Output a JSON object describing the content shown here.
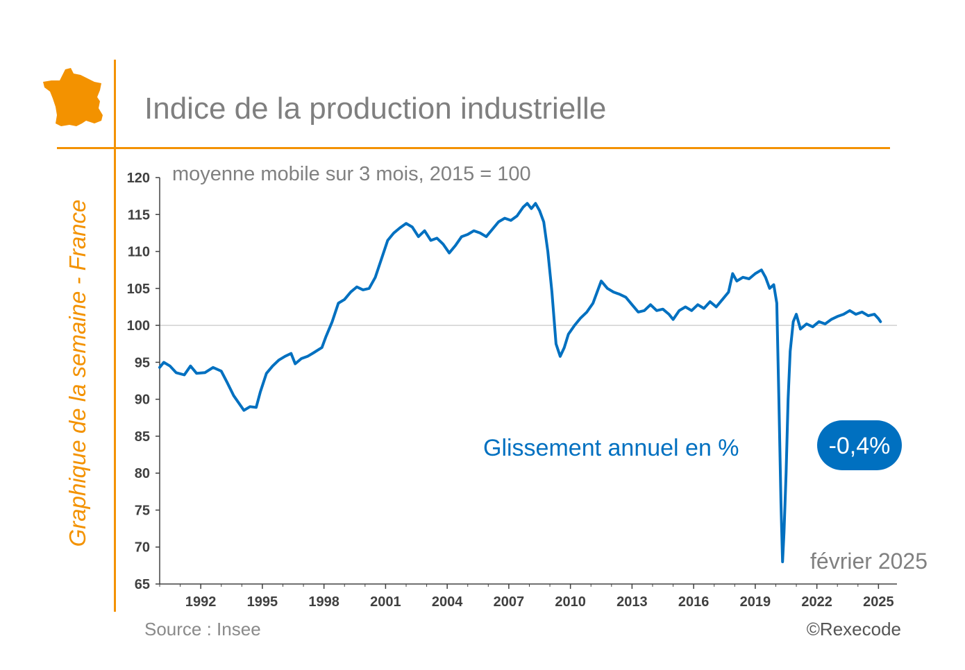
{
  "header": {
    "title": "Indice de la production industrielle",
    "side_label": "Graphique de la semaine - France"
  },
  "footer": {
    "source": "Source : Insee",
    "copyright": "©Rexecode"
  },
  "colors": {
    "accent": "#F39200",
    "line": "#0070C0",
    "badge": "#0070C0",
    "text_grey": "#808080",
    "reference_line": "#d0d0d0"
  },
  "icons": [
    "france-map-icon"
  ],
  "chart_data": {
    "type": "line",
    "subtitle": "moyenne mobile sur 3 mois, 2015 = 100",
    "xlabel": "",
    "ylabel": "",
    "ylim": [
      65,
      120
    ],
    "y_ticks": [
      "120",
      "115",
      "110",
      "105",
      "100",
      "95",
      "90",
      "85",
      "80",
      "75",
      "70",
      "65"
    ],
    "x_range": [
      1990.0,
      2025.9
    ],
    "x_ticks": [
      "1992",
      "1995",
      "1998",
      "2001",
      "2004",
      "2007",
      "2010",
      "2013",
      "2016",
      "2019",
      "2022",
      "2025"
    ],
    "reference_line": 100,
    "grid": false,
    "annotation": "Glissement annuel en %",
    "badge": "-0,4%",
    "date_label": "février 2025",
    "series": [
      {
        "values": [
          [
            1990.0,
            94.3
          ],
          [
            1990.2,
            95.0
          ],
          [
            1990.5,
            94.5
          ],
          [
            1990.8,
            93.6
          ],
          [
            1991.2,
            93.3
          ],
          [
            1991.5,
            94.5
          ],
          [
            1991.8,
            93.5
          ],
          [
            1992.2,
            93.6
          ],
          [
            1992.6,
            94.3
          ],
          [
            1993.0,
            93.8
          ],
          [
            1993.3,
            92.2
          ],
          [
            1993.6,
            90.5
          ],
          [
            1993.9,
            89.3
          ],
          [
            1994.1,
            88.5
          ],
          [
            1994.4,
            89.0
          ],
          [
            1994.7,
            88.9
          ],
          [
            1994.9,
            91.0
          ],
          [
            1995.2,
            93.5
          ],
          [
            1995.5,
            94.5
          ],
          [
            1995.8,
            95.3
          ],
          [
            1996.1,
            95.8
          ],
          [
            1996.4,
            96.2
          ],
          [
            1996.6,
            94.8
          ],
          [
            1996.9,
            95.5
          ],
          [
            1997.2,
            95.8
          ],
          [
            1997.5,
            96.3
          ],
          [
            1997.9,
            97.0
          ],
          [
            1998.1,
            98.5
          ],
          [
            1998.4,
            100.5
          ],
          [
            1998.7,
            103.0
          ],
          [
            1999.0,
            103.5
          ],
          [
            1999.3,
            104.5
          ],
          [
            1999.6,
            105.2
          ],
          [
            1999.9,
            104.8
          ],
          [
            2000.2,
            105.0
          ],
          [
            2000.5,
            106.5
          ],
          [
            2000.8,
            109.0
          ],
          [
            2001.1,
            111.5
          ],
          [
            2001.4,
            112.5
          ],
          [
            2001.7,
            113.2
          ],
          [
            2002.0,
            113.8
          ],
          [
            2002.3,
            113.3
          ],
          [
            2002.6,
            112.0
          ],
          [
            2002.9,
            112.8
          ],
          [
            2003.2,
            111.5
          ],
          [
            2003.5,
            111.8
          ],
          [
            2003.8,
            111.0
          ],
          [
            2004.1,
            109.8
          ],
          [
            2004.4,
            110.8
          ],
          [
            2004.7,
            112.0
          ],
          [
            2005.0,
            112.3
          ],
          [
            2005.3,
            112.8
          ],
          [
            2005.6,
            112.5
          ],
          [
            2005.9,
            112.0
          ],
          [
            2006.2,
            113.0
          ],
          [
            2006.5,
            114.0
          ],
          [
            2006.8,
            114.5
          ],
          [
            2007.1,
            114.2
          ],
          [
            2007.4,
            114.8
          ],
          [
            2007.7,
            116.0
          ],
          [
            2007.9,
            116.5
          ],
          [
            2008.1,
            115.8
          ],
          [
            2008.3,
            116.5
          ],
          [
            2008.5,
            115.5
          ],
          [
            2008.7,
            114.0
          ],
          [
            2008.9,
            110.0
          ],
          [
            2009.1,
            104.5
          ],
          [
            2009.3,
            97.5
          ],
          [
            2009.5,
            95.8
          ],
          [
            2009.7,
            97.0
          ],
          [
            2009.9,
            98.8
          ],
          [
            2010.2,
            100.0
          ],
          [
            2010.5,
            101.0
          ],
          [
            2010.8,
            101.8
          ],
          [
            2011.1,
            103.0
          ],
          [
            2011.3,
            104.5
          ],
          [
            2011.5,
            106.0
          ],
          [
            2011.8,
            105.0
          ],
          [
            2012.1,
            104.5
          ],
          [
            2012.4,
            104.2
          ],
          [
            2012.7,
            103.8
          ],
          [
            2013.0,
            102.8
          ],
          [
            2013.3,
            101.8
          ],
          [
            2013.6,
            102.0
          ],
          [
            2013.9,
            102.8
          ],
          [
            2014.2,
            102.0
          ],
          [
            2014.5,
            102.2
          ],
          [
            2014.8,
            101.5
          ],
          [
            2015.0,
            100.8
          ],
          [
            2015.3,
            102.0
          ],
          [
            2015.6,
            102.5
          ],
          [
            2015.9,
            102.0
          ],
          [
            2016.2,
            102.8
          ],
          [
            2016.5,
            102.3
          ],
          [
            2016.8,
            103.2
          ],
          [
            2017.1,
            102.5
          ],
          [
            2017.4,
            103.5
          ],
          [
            2017.7,
            104.5
          ],
          [
            2017.9,
            107.0
          ],
          [
            2018.1,
            106.0
          ],
          [
            2018.4,
            106.5
          ],
          [
            2018.7,
            106.3
          ],
          [
            2019.0,
            107.0
          ],
          [
            2019.3,
            107.5
          ],
          [
            2019.5,
            106.5
          ],
          [
            2019.7,
            105.0
          ],
          [
            2019.9,
            105.5
          ],
          [
            2020.05,
            103.0
          ],
          [
            2020.15,
            90.0
          ],
          [
            2020.25,
            76.0
          ],
          [
            2020.33,
            68.0
          ],
          [
            2020.4,
            72.0
          ],
          [
            2020.5,
            80.0
          ],
          [
            2020.6,
            90.0
          ],
          [
            2020.7,
            96.5
          ],
          [
            2020.85,
            100.5
          ],
          [
            2021.0,
            101.5
          ],
          [
            2021.2,
            99.5
          ],
          [
            2021.5,
            100.2
          ],
          [
            2021.8,
            99.8
          ],
          [
            2022.1,
            100.5
          ],
          [
            2022.4,
            100.2
          ],
          [
            2022.7,
            100.8
          ],
          [
            2023.0,
            101.2
          ],
          [
            2023.3,
            101.5
          ],
          [
            2023.6,
            102.0
          ],
          [
            2023.9,
            101.5
          ],
          [
            2024.2,
            101.8
          ],
          [
            2024.5,
            101.3
          ],
          [
            2024.8,
            101.5
          ],
          [
            2025.0,
            100.9
          ],
          [
            2025.1,
            100.5
          ]
        ]
      }
    ]
  }
}
